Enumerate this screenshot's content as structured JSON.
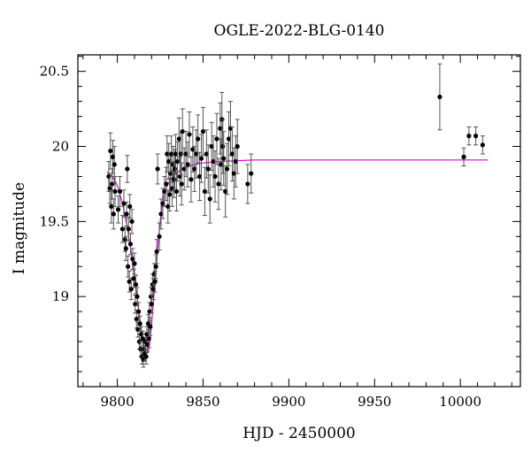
{
  "chart_data": {
    "type": "scatter",
    "title": "OGLE-2022-BLG-0140",
    "xlabel": "HJD - 2450000",
    "ylabel": "I magnitude",
    "xlim": [
      9777,
      10035
    ],
    "ylim": [
      20.61,
      18.4
    ],
    "y_inverted": true,
    "grid": false,
    "xticks": [
      9800,
      9850,
      9900,
      9950,
      10000
    ],
    "yticks": [
      19,
      19.5,
      20,
      20.5
    ],
    "colors": {
      "points": "#000000",
      "errorbars": "#555555",
      "model": "#e000e0"
    },
    "series": [
      {
        "type": "errorbar-points",
        "points": [
          [
            9795.0,
            19.8,
            0.1
          ],
          [
            9795.6,
            19.72,
            0.1
          ],
          [
            9796.0,
            19.97,
            0.12
          ],
          [
            9796.5,
            19.6,
            0.11
          ],
          [
            9797.0,
            19.75,
            0.1
          ],
          [
            9797.4,
            19.93,
            0.11
          ],
          [
            9797.8,
            19.55,
            0.1
          ],
          [
            9798.3,
            19.88,
            0.12
          ],
          [
            9798.7,
            19.7,
            0.1
          ],
          [
            9800.5,
            19.58,
            0.09
          ],
          [
            9801.5,
            19.7,
            0.1
          ],
          [
            9803.0,
            19.45,
            0.09
          ],
          [
            9803.8,
            19.62,
            0.09
          ],
          [
            9804.5,
            19.38,
            0.08
          ],
          [
            9805.0,
            19.32,
            0.08
          ],
          [
            9805.4,
            19.55,
            0.08
          ],
          [
            9805.8,
            19.85,
            0.09
          ],
          [
            9806.2,
            19.2,
            0.07
          ],
          [
            9806.6,
            19.45,
            0.08
          ],
          [
            9807.0,
            19.1,
            0.07
          ],
          [
            9807.3,
            19.6,
            0.08
          ],
          [
            9807.7,
            19.35,
            0.07
          ],
          [
            9808.1,
            19.05,
            0.07
          ],
          [
            9808.5,
            19.5,
            0.08
          ],
          [
            9808.9,
            19.25,
            0.07
          ],
          [
            9809.5,
            19.12,
            0.06
          ],
          [
            9810.0,
            19.22,
            0.07
          ],
          [
            9810.4,
            18.95,
            0.06
          ],
          [
            9810.8,
            19.08,
            0.06
          ],
          [
            9811.2,
            18.85,
            0.06
          ],
          [
            9811.6,
            19.0,
            0.06
          ],
          [
            9812.0,
            18.78,
            0.05
          ],
          [
            9812.4,
            18.9,
            0.06
          ],
          [
            9812.8,
            18.7,
            0.05
          ],
          [
            9813.2,
            18.82,
            0.05
          ],
          [
            9813.6,
            18.65,
            0.05
          ],
          [
            9814.0,
            18.75,
            0.05
          ],
          [
            9814.4,
            18.6,
            0.05
          ],
          [
            9814.8,
            18.72,
            0.05
          ],
          [
            9815.2,
            18.58,
            0.05
          ],
          [
            9815.6,
            18.65,
            0.05
          ],
          [
            9816.0,
            18.62,
            0.05
          ],
          [
            9816.4,
            18.7,
            0.05
          ],
          [
            9816.8,
            18.6,
            0.05
          ],
          [
            9817.2,
            18.75,
            0.05
          ],
          [
            9817.6,
            18.68,
            0.05
          ],
          [
            9818.0,
            18.82,
            0.06
          ],
          [
            9818.4,
            18.72,
            0.06
          ],
          [
            9818.8,
            18.9,
            0.06
          ],
          [
            9819.2,
            18.8,
            0.06
          ],
          [
            9819.6,
            19.0,
            0.06
          ],
          [
            9820.0,
            18.95,
            0.06
          ],
          [
            9820.5,
            19.08,
            0.07
          ],
          [
            9821.0,
            19.05,
            0.07
          ],
          [
            9821.5,
            19.15,
            0.07
          ],
          [
            9822.0,
            19.1,
            0.07
          ],
          [
            9822.5,
            19.2,
            0.08
          ],
          [
            9823.0,
            19.3,
            0.08
          ],
          [
            9823.5,
            19.85,
            0.1
          ],
          [
            9824.5,
            19.4,
            0.09
          ],
          [
            9825.5,
            19.55,
            0.1
          ],
          [
            9826.5,
            19.62,
            0.1
          ],
          [
            9827.5,
            19.7,
            0.1
          ],
          [
            9828.5,
            19.75,
            0.11
          ],
          [
            9829.0,
            19.95,
            0.12
          ],
          [
            9829.5,
            19.6,
            0.11
          ],
          [
            9830.0,
            19.9,
            0.12
          ],
          [
            9830.5,
            19.68,
            0.11
          ],
          [
            9831.0,
            19.82,
            0.12
          ],
          [
            9831.5,
            19.95,
            0.12
          ],
          [
            9832.0,
            19.72,
            0.12
          ],
          [
            9832.5,
            19.88,
            0.12
          ],
          [
            9833.0,
            19.78,
            0.12
          ],
          [
            9833.5,
            19.85,
            0.13
          ],
          [
            9834.0,
            19.95,
            0.13
          ],
          [
            9834.5,
            19.7,
            0.13
          ],
          [
            9835.0,
            19.9,
            0.13
          ],
          [
            9836.0,
            20.05,
            0.14
          ],
          [
            9836.5,
            19.8,
            0.13
          ],
          [
            9837.0,
            19.95,
            0.14
          ],
          [
            9837.5,
            19.75,
            0.14
          ],
          [
            9838.0,
            20.1,
            0.15
          ],
          [
            9839.0,
            19.85,
            0.14
          ],
          [
            9840.0,
            19.95,
            0.15
          ],
          [
            9841.0,
            19.88,
            0.15
          ],
          [
            9842.0,
            20.08,
            0.15
          ],
          [
            9843.0,
            19.78,
            0.15
          ],
          [
            9844.0,
            19.98,
            0.15
          ],
          [
            9845.0,
            19.85,
            0.15
          ],
          [
            9846.0,
            19.95,
            0.16
          ],
          [
            9847.0,
            20.05,
            0.16
          ],
          [
            9848.0,
            19.8,
            0.16
          ],
          [
            9849.0,
            19.92,
            0.16
          ],
          [
            9850.0,
            20.1,
            0.16
          ],
          [
            9851.0,
            19.7,
            0.16
          ],
          [
            9852.0,
            19.95,
            0.16
          ],
          [
            9853.0,
            19.85,
            0.16
          ],
          [
            9854.0,
            19.65,
            0.16
          ],
          [
            9855.0,
            20.0,
            0.16
          ],
          [
            9856.0,
            19.9,
            0.17
          ],
          [
            9857.0,
            19.8,
            0.17
          ],
          [
            9858.0,
            20.05,
            0.17
          ],
          [
            9859.0,
            19.75,
            0.17
          ],
          [
            9860.0,
            20.12,
            0.17
          ],
          [
            9860.5,
            19.88,
            0.17
          ],
          [
            9861.0,
            20.18,
            0.18
          ],
          [
            9861.5,
            20.0,
            0.18
          ],
          [
            9862.0,
            19.92,
            0.18
          ],
          [
            9863.0,
            19.7,
            0.17
          ],
          [
            9864.0,
            19.85,
            0.17
          ],
          [
            9865.0,
            20.05,
            0.18
          ],
          [
            9866.0,
            20.12,
            0.18
          ],
          [
            9867.0,
            19.95,
            0.18
          ],
          [
            9868.0,
            19.82,
            0.17
          ],
          [
            9869.0,
            19.9,
            0.17
          ],
          [
            9870.0,
            20.0,
            0.18
          ],
          [
            9876.0,
            19.75,
            0.13
          ],
          [
            9878.0,
            19.82,
            0.13
          ],
          [
            9988.0,
            20.33,
            0.22
          ],
          [
            10002.0,
            19.93,
            0.06
          ],
          [
            10005.0,
            20.07,
            0.06
          ],
          [
            10009.0,
            20.07,
            0.06
          ],
          [
            10013.0,
            20.01,
            0.06
          ]
        ]
      },
      {
        "type": "line",
        "points": [
          [
            9794,
            19.83
          ],
          [
            9797,
            19.8
          ],
          [
            9800,
            19.74
          ],
          [
            9803,
            19.62
          ],
          [
            9806,
            19.45
          ],
          [
            9808,
            19.3
          ],
          [
            9810,
            19.12
          ],
          [
            9812,
            18.95
          ],
          [
            9813,
            18.85
          ],
          [
            9814,
            18.76
          ],
          [
            9815,
            18.7
          ],
          [
            9816,
            18.65
          ],
          [
            9817,
            18.62
          ],
          [
            9818,
            18.63
          ],
          [
            9819,
            18.7
          ],
          [
            9820,
            18.82
          ],
          [
            9821,
            18.96
          ],
          [
            9822,
            19.1
          ],
          [
            9823,
            19.25
          ],
          [
            9824,
            19.38
          ],
          [
            9825,
            19.5
          ],
          [
            9826,
            19.6
          ],
          [
            9827,
            19.66
          ],
          [
            9828,
            19.71
          ],
          [
            9830,
            19.76
          ],
          [
            9832,
            19.79
          ],
          [
            9835,
            19.83
          ],
          [
            9840,
            19.86
          ],
          [
            9845,
            19.88
          ],
          [
            9850,
            19.89
          ],
          [
            9860,
            19.9
          ],
          [
            9880,
            19.91
          ],
          [
            9920,
            19.91
          ],
          [
            9960,
            19.91
          ],
          [
            10000,
            19.91
          ],
          [
            10016,
            19.91
          ]
        ]
      }
    ]
  }
}
